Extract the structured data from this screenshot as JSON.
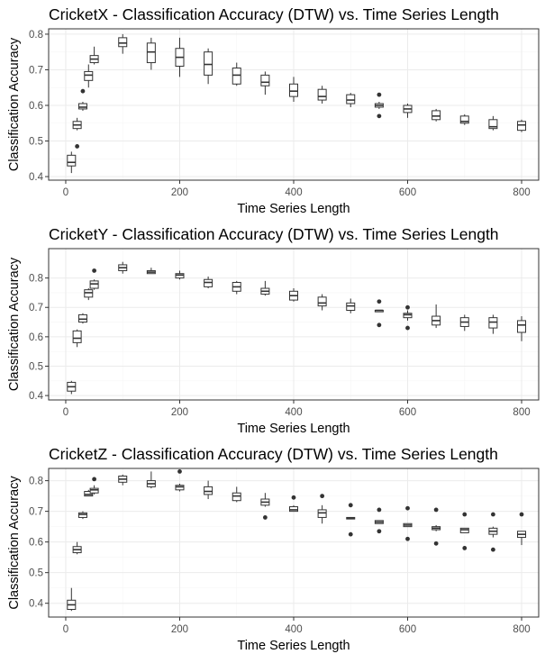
{
  "chart_data": [
    {
      "type": "boxplot",
      "title": "CricketX - Classification Accuracy (DTW) vs. Time Series Length",
      "xlabel": "Time Series Length",
      "ylabel": "Classification Accuracy",
      "xlim": [
        -30,
        830
      ],
      "ylim": [
        0.39,
        0.815
      ],
      "xticks": [
        0,
        200,
        400,
        600,
        800
      ],
      "yticks": [
        0.4,
        0.5,
        0.6,
        0.7,
        0.8
      ],
      "grid": true,
      "boxes": [
        {
          "x": 10,
          "min": 0.41,
          "q1": 0.43,
          "median": 0.44,
          "q3": 0.46,
          "max": 0.47,
          "outliers": []
        },
        {
          "x": 20,
          "min": 0.53,
          "q1": 0.535,
          "median": 0.545,
          "q3": 0.555,
          "max": 0.565,
          "outliers": [
            0.485
          ]
        },
        {
          "x": 30,
          "min": 0.585,
          "q1": 0.59,
          "median": 0.595,
          "q3": 0.605,
          "max": 0.61,
          "outliers": [
            0.64
          ]
        },
        {
          "x": 40,
          "min": 0.65,
          "q1": 0.67,
          "median": 0.685,
          "q3": 0.695,
          "max": 0.715,
          "outliers": []
        },
        {
          "x": 50,
          "min": 0.715,
          "q1": 0.72,
          "median": 0.73,
          "q3": 0.74,
          "max": 0.765,
          "outliers": []
        },
        {
          "x": 100,
          "min": 0.745,
          "q1": 0.765,
          "median": 0.775,
          "q3": 0.79,
          "max": 0.8,
          "outliers": []
        },
        {
          "x": 150,
          "min": 0.7,
          "q1": 0.72,
          "median": 0.75,
          "q3": 0.775,
          "max": 0.79,
          "outliers": []
        },
        {
          "x": 200,
          "min": 0.68,
          "q1": 0.71,
          "median": 0.735,
          "q3": 0.76,
          "max": 0.79,
          "outliers": []
        },
        {
          "x": 250,
          "min": 0.66,
          "q1": 0.685,
          "median": 0.715,
          "q3": 0.75,
          "max": 0.76,
          "outliers": []
        },
        {
          "x": 300,
          "min": 0.655,
          "q1": 0.66,
          "median": 0.685,
          "q3": 0.705,
          "max": 0.72,
          "outliers": []
        },
        {
          "x": 350,
          "min": 0.63,
          "q1": 0.655,
          "median": 0.665,
          "q3": 0.685,
          "max": 0.695,
          "outliers": []
        },
        {
          "x": 400,
          "min": 0.61,
          "q1": 0.625,
          "median": 0.64,
          "q3": 0.66,
          "max": 0.68,
          "outliers": []
        },
        {
          "x": 450,
          "min": 0.605,
          "q1": 0.615,
          "median": 0.625,
          "q3": 0.645,
          "max": 0.655,
          "outliers": []
        },
        {
          "x": 500,
          "min": 0.595,
          "q1": 0.605,
          "median": 0.615,
          "q3": 0.63,
          "max": 0.635,
          "outliers": []
        },
        {
          "x": 550,
          "min": 0.59,
          "q1": 0.595,
          "median": 0.6,
          "q3": 0.605,
          "max": 0.61,
          "outliers": [
            0.57,
            0.63
          ]
        },
        {
          "x": 600,
          "min": 0.565,
          "q1": 0.58,
          "median": 0.59,
          "q3": 0.6,
          "max": 0.605,
          "outliers": []
        },
        {
          "x": 650,
          "min": 0.555,
          "q1": 0.56,
          "median": 0.57,
          "q3": 0.585,
          "max": 0.59,
          "outliers": []
        },
        {
          "x": 700,
          "min": 0.545,
          "q1": 0.55,
          "median": 0.555,
          "q3": 0.57,
          "max": 0.575,
          "outliers": []
        },
        {
          "x": 750,
          "min": 0.53,
          "q1": 0.535,
          "median": 0.54,
          "q3": 0.56,
          "max": 0.57,
          "outliers": []
        },
        {
          "x": 800,
          "min": 0.525,
          "q1": 0.53,
          "median": 0.545,
          "q3": 0.555,
          "max": 0.56,
          "outliers": []
        }
      ]
    },
    {
      "type": "boxplot",
      "title": "CricketY - Classification Accuracy (DTW) vs. Time Series Length",
      "xlabel": "Time Series Length",
      "ylabel": "Classification Accuracy",
      "xlim": [
        -30,
        830
      ],
      "ylim": [
        0.385,
        0.9
      ],
      "xticks": [
        0,
        200,
        400,
        600,
        800
      ],
      "yticks": [
        0.4,
        0.5,
        0.6,
        0.7,
        0.8
      ],
      "grid": true,
      "boxes": [
        {
          "x": 10,
          "min": 0.405,
          "q1": 0.415,
          "median": 0.43,
          "q3": 0.445,
          "max": 0.45,
          "outliers": []
        },
        {
          "x": 20,
          "min": 0.565,
          "q1": 0.58,
          "median": 0.595,
          "q3": 0.62,
          "max": 0.625,
          "outliers": []
        },
        {
          "x": 30,
          "min": 0.645,
          "q1": 0.65,
          "median": 0.66,
          "q3": 0.675,
          "max": 0.68,
          "outliers": []
        },
        {
          "x": 40,
          "min": 0.725,
          "q1": 0.735,
          "median": 0.75,
          "q3": 0.76,
          "max": 0.765,
          "outliers": []
        },
        {
          "x": 50,
          "min": 0.76,
          "q1": 0.765,
          "median": 0.78,
          "q3": 0.79,
          "max": 0.795,
          "outliers": [
            0.825
          ]
        },
        {
          "x": 100,
          "min": 0.815,
          "q1": 0.825,
          "median": 0.835,
          "q3": 0.845,
          "max": 0.855,
          "outliers": []
        },
        {
          "x": 150,
          "min": 0.815,
          "q1": 0.815,
          "median": 0.82,
          "q3": 0.825,
          "max": 0.835,
          "outliers": []
        },
        {
          "x": 200,
          "min": 0.795,
          "q1": 0.8,
          "median": 0.81,
          "q3": 0.815,
          "max": 0.825,
          "outliers": []
        },
        {
          "x": 250,
          "min": 0.765,
          "q1": 0.77,
          "median": 0.785,
          "q3": 0.795,
          "max": 0.805,
          "outliers": []
        },
        {
          "x": 300,
          "min": 0.745,
          "q1": 0.755,
          "median": 0.77,
          "q3": 0.785,
          "max": 0.79,
          "outliers": []
        },
        {
          "x": 350,
          "min": 0.74,
          "q1": 0.745,
          "median": 0.755,
          "q3": 0.765,
          "max": 0.79,
          "outliers": []
        },
        {
          "x": 400,
          "min": 0.72,
          "q1": 0.725,
          "median": 0.74,
          "q3": 0.755,
          "max": 0.765,
          "outliers": []
        },
        {
          "x": 450,
          "min": 0.69,
          "q1": 0.705,
          "median": 0.715,
          "q3": 0.735,
          "max": 0.745,
          "outliers": []
        },
        {
          "x": 500,
          "min": 0.68,
          "q1": 0.69,
          "median": 0.705,
          "q3": 0.715,
          "max": 0.73,
          "outliers": []
        },
        {
          "x": 550,
          "min": 0.685,
          "q1": 0.685,
          "median": 0.69,
          "q3": 0.69,
          "max": 0.69,
          "outliers": [
            0.64,
            0.72
          ]
        },
        {
          "x": 600,
          "min": 0.655,
          "q1": 0.665,
          "median": 0.675,
          "q3": 0.68,
          "max": 0.69,
          "outliers": [
            0.63,
            0.7
          ]
        },
        {
          "x": 650,
          "min": 0.63,
          "q1": 0.64,
          "median": 0.655,
          "q3": 0.67,
          "max": 0.71,
          "outliers": []
        },
        {
          "x": 700,
          "min": 0.62,
          "q1": 0.635,
          "median": 0.65,
          "q3": 0.665,
          "max": 0.675,
          "outliers": []
        },
        {
          "x": 750,
          "min": 0.61,
          "q1": 0.63,
          "median": 0.65,
          "q3": 0.665,
          "max": 0.675,
          "outliers": []
        },
        {
          "x": 800,
          "min": 0.585,
          "q1": 0.615,
          "median": 0.64,
          "q3": 0.655,
          "max": 0.67,
          "outliers": []
        }
      ]
    },
    {
      "type": "boxplot",
      "title": "CricketZ - Classification Accuracy (DTW) vs. Time Series Length",
      "xlabel": "Time Series Length",
      "ylabel": "Classification Accuracy",
      "xlim": [
        -30,
        830
      ],
      "ylim": [
        0.355,
        0.84
      ],
      "xticks": [
        0,
        200,
        400,
        600,
        800
      ],
      "yticks": [
        0.4,
        0.5,
        0.6,
        0.7,
        0.8
      ],
      "grid": true,
      "boxes": [
        {
          "x": 10,
          "min": 0.375,
          "q1": 0.38,
          "median": 0.395,
          "q3": 0.41,
          "max": 0.45,
          "outliers": []
        },
        {
          "x": 20,
          "min": 0.56,
          "q1": 0.565,
          "median": 0.575,
          "q3": 0.585,
          "max": 0.6,
          "outliers": []
        },
        {
          "x": 30,
          "min": 0.675,
          "q1": 0.68,
          "median": 0.69,
          "q3": 0.695,
          "max": 0.7,
          "outliers": []
        },
        {
          "x": 40,
          "min": 0.75,
          "q1": 0.75,
          "median": 0.755,
          "q3": 0.765,
          "max": 0.77,
          "outliers": []
        },
        {
          "x": 50,
          "min": 0.755,
          "q1": 0.76,
          "median": 0.77,
          "q3": 0.775,
          "max": 0.785,
          "outliers": [
            0.805
          ]
        },
        {
          "x": 100,
          "min": 0.785,
          "q1": 0.795,
          "median": 0.805,
          "q3": 0.815,
          "max": 0.82,
          "outliers": []
        },
        {
          "x": 150,
          "min": 0.775,
          "q1": 0.78,
          "median": 0.79,
          "q3": 0.8,
          "max": 0.83,
          "outliers": []
        },
        {
          "x": 200,
          "min": 0.765,
          "q1": 0.77,
          "median": 0.78,
          "q3": 0.785,
          "max": 0.79,
          "outliers": [
            0.83
          ]
        },
        {
          "x": 250,
          "min": 0.74,
          "q1": 0.755,
          "median": 0.765,
          "q3": 0.78,
          "max": 0.8,
          "outliers": []
        },
        {
          "x": 300,
          "min": 0.73,
          "q1": 0.735,
          "median": 0.75,
          "q3": 0.76,
          "max": 0.78,
          "outliers": []
        },
        {
          "x": 350,
          "min": 0.715,
          "q1": 0.72,
          "median": 0.73,
          "q3": 0.74,
          "max": 0.76,
          "outliers": [
            0.68
          ]
        },
        {
          "x": 400,
          "min": 0.7,
          "q1": 0.7,
          "median": 0.705,
          "q3": 0.715,
          "max": 0.72,
          "outliers": [
            0.745
          ]
        },
        {
          "x": 450,
          "min": 0.66,
          "q1": 0.68,
          "median": 0.695,
          "q3": 0.705,
          "max": 0.72,
          "outliers": [
            0.75
          ]
        },
        {
          "x": 500,
          "min": 0.675,
          "q1": 0.675,
          "median": 0.678,
          "q3": 0.68,
          "max": 0.68,
          "outliers": [
            0.625,
            0.72
          ]
        },
        {
          "x": 550,
          "min": 0.66,
          "q1": 0.66,
          "median": 0.665,
          "q3": 0.67,
          "max": 0.67,
          "outliers": [
            0.635,
            0.705
          ]
        },
        {
          "x": 600,
          "min": 0.65,
          "q1": 0.65,
          "median": 0.655,
          "q3": 0.66,
          "max": 0.66,
          "outliers": [
            0.61,
            0.71
          ]
        },
        {
          "x": 650,
          "min": 0.635,
          "q1": 0.64,
          "median": 0.645,
          "q3": 0.65,
          "max": 0.655,
          "outliers": [
            0.595,
            0.705
          ]
        },
        {
          "x": 700,
          "min": 0.63,
          "q1": 0.63,
          "median": 0.64,
          "q3": 0.645,
          "max": 0.645,
          "outliers": [
            0.58,
            0.69
          ]
        },
        {
          "x": 750,
          "min": 0.615,
          "q1": 0.625,
          "median": 0.635,
          "q3": 0.645,
          "max": 0.65,
          "outliers": [
            0.575,
            0.69
          ]
        },
        {
          "x": 800,
          "min": 0.59,
          "q1": 0.615,
          "median": 0.625,
          "q3": 0.635,
          "max": 0.635,
          "outliers": [
            0.69
          ]
        }
      ]
    }
  ]
}
